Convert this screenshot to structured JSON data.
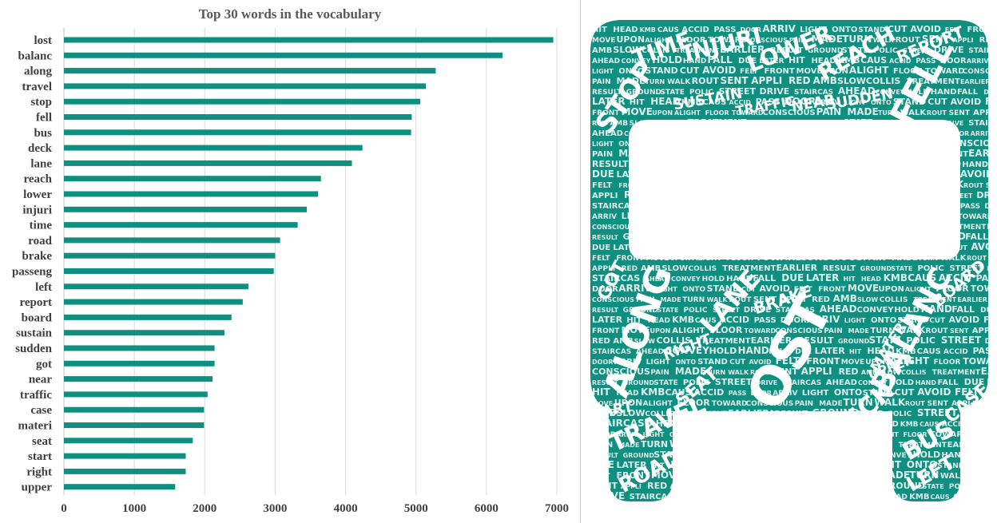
{
  "chart_data": {
    "type": "bar",
    "orientation": "horizontal",
    "title": "Top 30 words in the vocabulary",
    "xlabel": "",
    "ylabel": "",
    "xlim": [
      0,
      7000
    ],
    "xticks": [
      "0",
      "1000",
      "2000",
      "3000",
      "4000",
      "5000",
      "6000",
      "7000"
    ],
    "grid": "vertical",
    "bar_color": "#0e8f80",
    "categories": [
      "lost",
      "balanc",
      "along",
      "travel",
      "stop",
      "fell",
      "bus",
      "deck",
      "lane",
      "reach",
      "lower",
      "injuri",
      "time",
      "road",
      "brake",
      "passeng",
      "left",
      "report",
      "board",
      "sustain",
      "sudden",
      "got",
      "near",
      "traffic",
      "case",
      "materi",
      "seat",
      "start",
      "right",
      "upper"
    ],
    "values": [
      6950,
      6230,
      5280,
      5140,
      5060,
      4940,
      4930,
      4240,
      4090,
      3650,
      3610,
      3450,
      3320,
      3070,
      3000,
      2980,
      2620,
      2540,
      2380,
      2280,
      2140,
      2140,
      2110,
      2040,
      1990,
      1990,
      1830,
      1730,
      1730,
      1580
    ]
  },
  "word_cloud": {
    "shape": "bus",
    "color": "#0e8f80",
    "words": [
      "LOST",
      "ALONG",
      "BALANC",
      "TRAVEL",
      "FELL",
      "STOP",
      "LANE",
      "DECK",
      "BUS",
      "REACH",
      "LOWER",
      "INJURI",
      "TIME",
      "ROAD",
      "BRAKE",
      "PASSENG",
      "LEFT",
      "REPORT",
      "BOARD",
      "SUSTAIN",
      "SUDDEN",
      "GOT",
      "NEAR",
      "TRAFFIC",
      "CASE",
      "MATERI",
      "SEAT",
      "START",
      "RIGHT",
      "UPPER",
      "HIT",
      "HEAD",
      "KMB",
      "CAUS",
      "ACCID",
      "PASS",
      "DOOR",
      "ARRIV",
      "LIGHT",
      "ONTO",
      "STAND",
      "CUT",
      "AVOID",
      "FELT",
      "FRONT",
      "MOVE",
      "UPON",
      "ALIGHT",
      "FLOOR",
      "TOWARD",
      "CONSCIOUS",
      "PAIN",
      "MADE",
      "TURN",
      "WALK",
      "ROUT",
      "SENT",
      "APPLI",
      "RED",
      "AMB",
      "SLOW",
      "COLLIS",
      "TREATMENT",
      "EARLIER",
      "RESULT",
      "GROUND",
      "STATE",
      "POLIC",
      "STREET",
      "DRIVE",
      "STAIRCAS",
      "AHEAD",
      "CONVEY",
      "HOLD",
      "HAND",
      "FALL",
      "DUE",
      "LATER"
    ]
  }
}
